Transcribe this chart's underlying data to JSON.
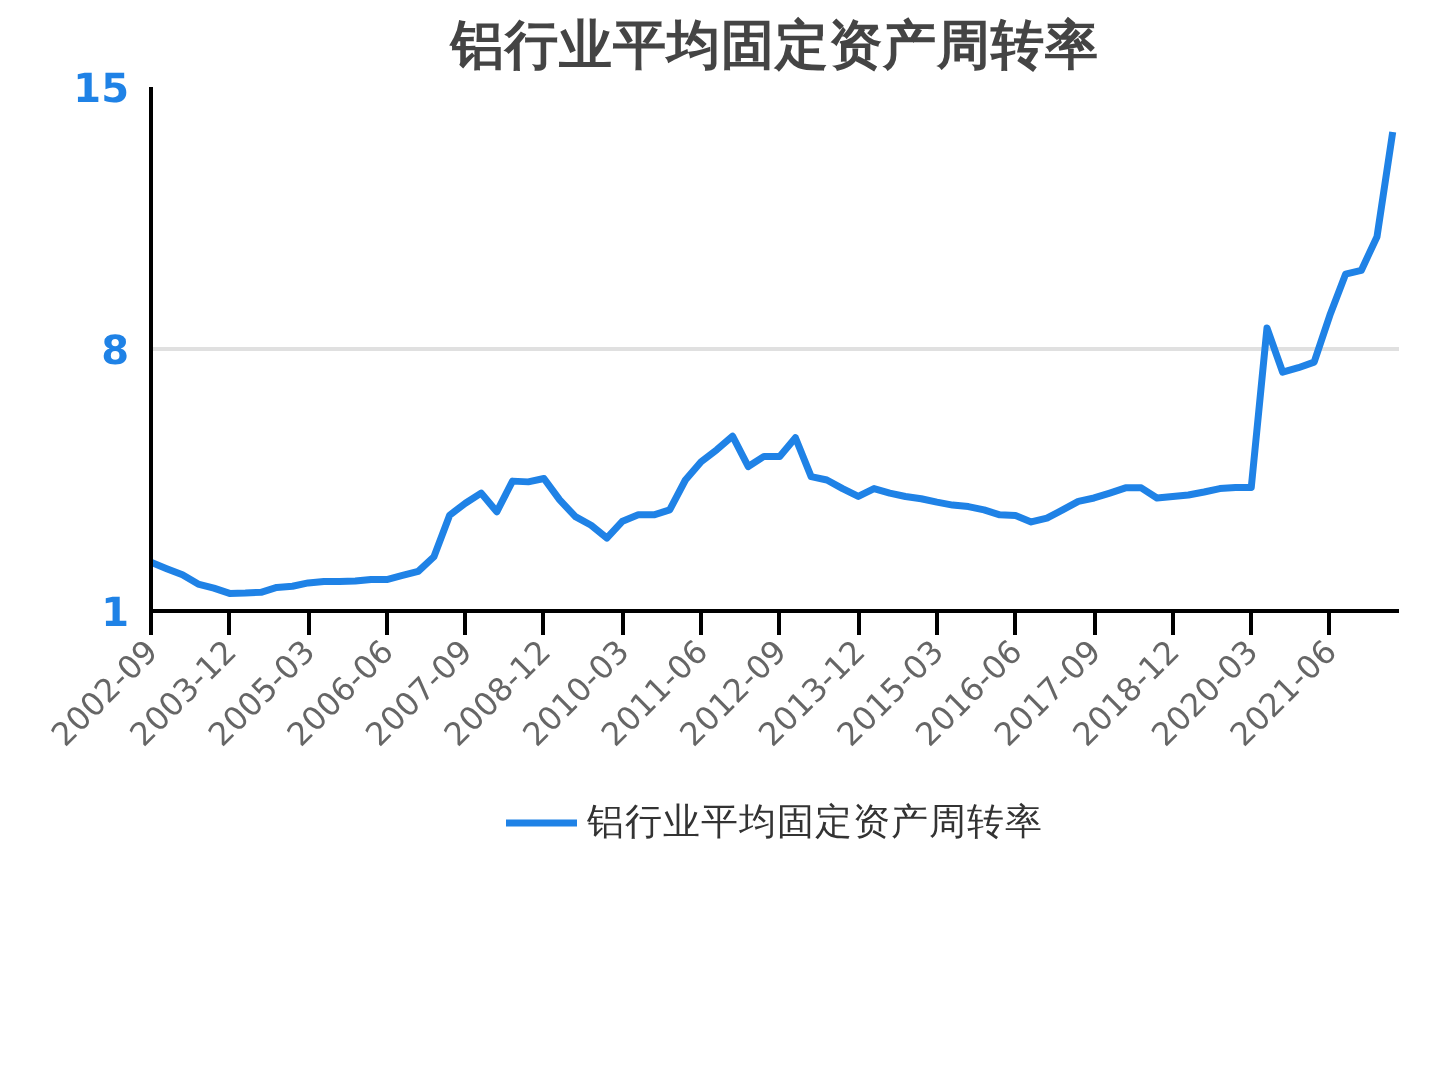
{
  "chart_data": {
    "type": "line",
    "title": "铝行业平均固定资产周转率",
    "categories": [
      "2002-09",
      null,
      null,
      null,
      null,
      "2003-12",
      null,
      null,
      null,
      null,
      "2005-03",
      null,
      null,
      null,
      null,
      "2006-06",
      null,
      null,
      null,
      null,
      "2007-09",
      null,
      null,
      null,
      null,
      "2008-12",
      null,
      null,
      null,
      null,
      "2010-03",
      null,
      null,
      null,
      null,
      "2011-06",
      null,
      null,
      null,
      null,
      "2012-09",
      null,
      null,
      null,
      null,
      "2013-12",
      null,
      null,
      null,
      null,
      "2015-03",
      null,
      null,
      null,
      null,
      "2016-06",
      null,
      null,
      null,
      null,
      "2017-09",
      null,
      null,
      null,
      null,
      "2018-12",
      null,
      null,
      null,
      null,
      "2020-03",
      null,
      null,
      null,
      null,
      "2021-06",
      null,
      null,
      null,
      null
    ],
    "series": [
      {
        "name": "铝行业平均固定资产周转率",
        "color": "#1f82e6",
        "values": [
          2.3,
          2.13,
          1.97,
          1.72,
          1.61,
          1.47,
          1.48,
          1.5,
          1.63,
          1.66,
          1.75,
          1.79,
          1.79,
          1.8,
          1.84,
          1.84,
          1.95,
          2.06,
          2.45,
          3.56,
          3.88,
          4.15,
          3.65,
          4.47,
          4.45,
          4.54,
          3.97,
          3.52,
          3.29,
          2.95,
          3.4,
          3.57,
          3.57,
          3.7,
          4.5,
          4.99,
          5.31,
          5.67,
          4.86,
          5.13,
          5.13,
          5.63,
          4.59,
          4.5,
          4.27,
          4.06,
          4.27,
          4.15,
          4.06,
          4.0,
          3.91,
          3.83,
          3.79,
          3.7,
          3.57,
          3.55,
          3.38,
          3.48,
          3.7,
          3.93,
          4.02,
          4.15,
          4.29,
          4.29,
          4.02,
          4.06,
          4.1,
          4.18,
          4.27,
          4.3,
          4.3,
          8.56,
          7.38,
          7.5,
          7.65,
          8.9,
          10.0,
          10.1,
          11.0,
          13.8
        ]
      }
    ],
    "ylim": [
      1,
      15
    ],
    "yticks": [
      1,
      8,
      15
    ],
    "grid": "y",
    "legend": "bottom",
    "marker": "none",
    "line_style": "solid"
  }
}
